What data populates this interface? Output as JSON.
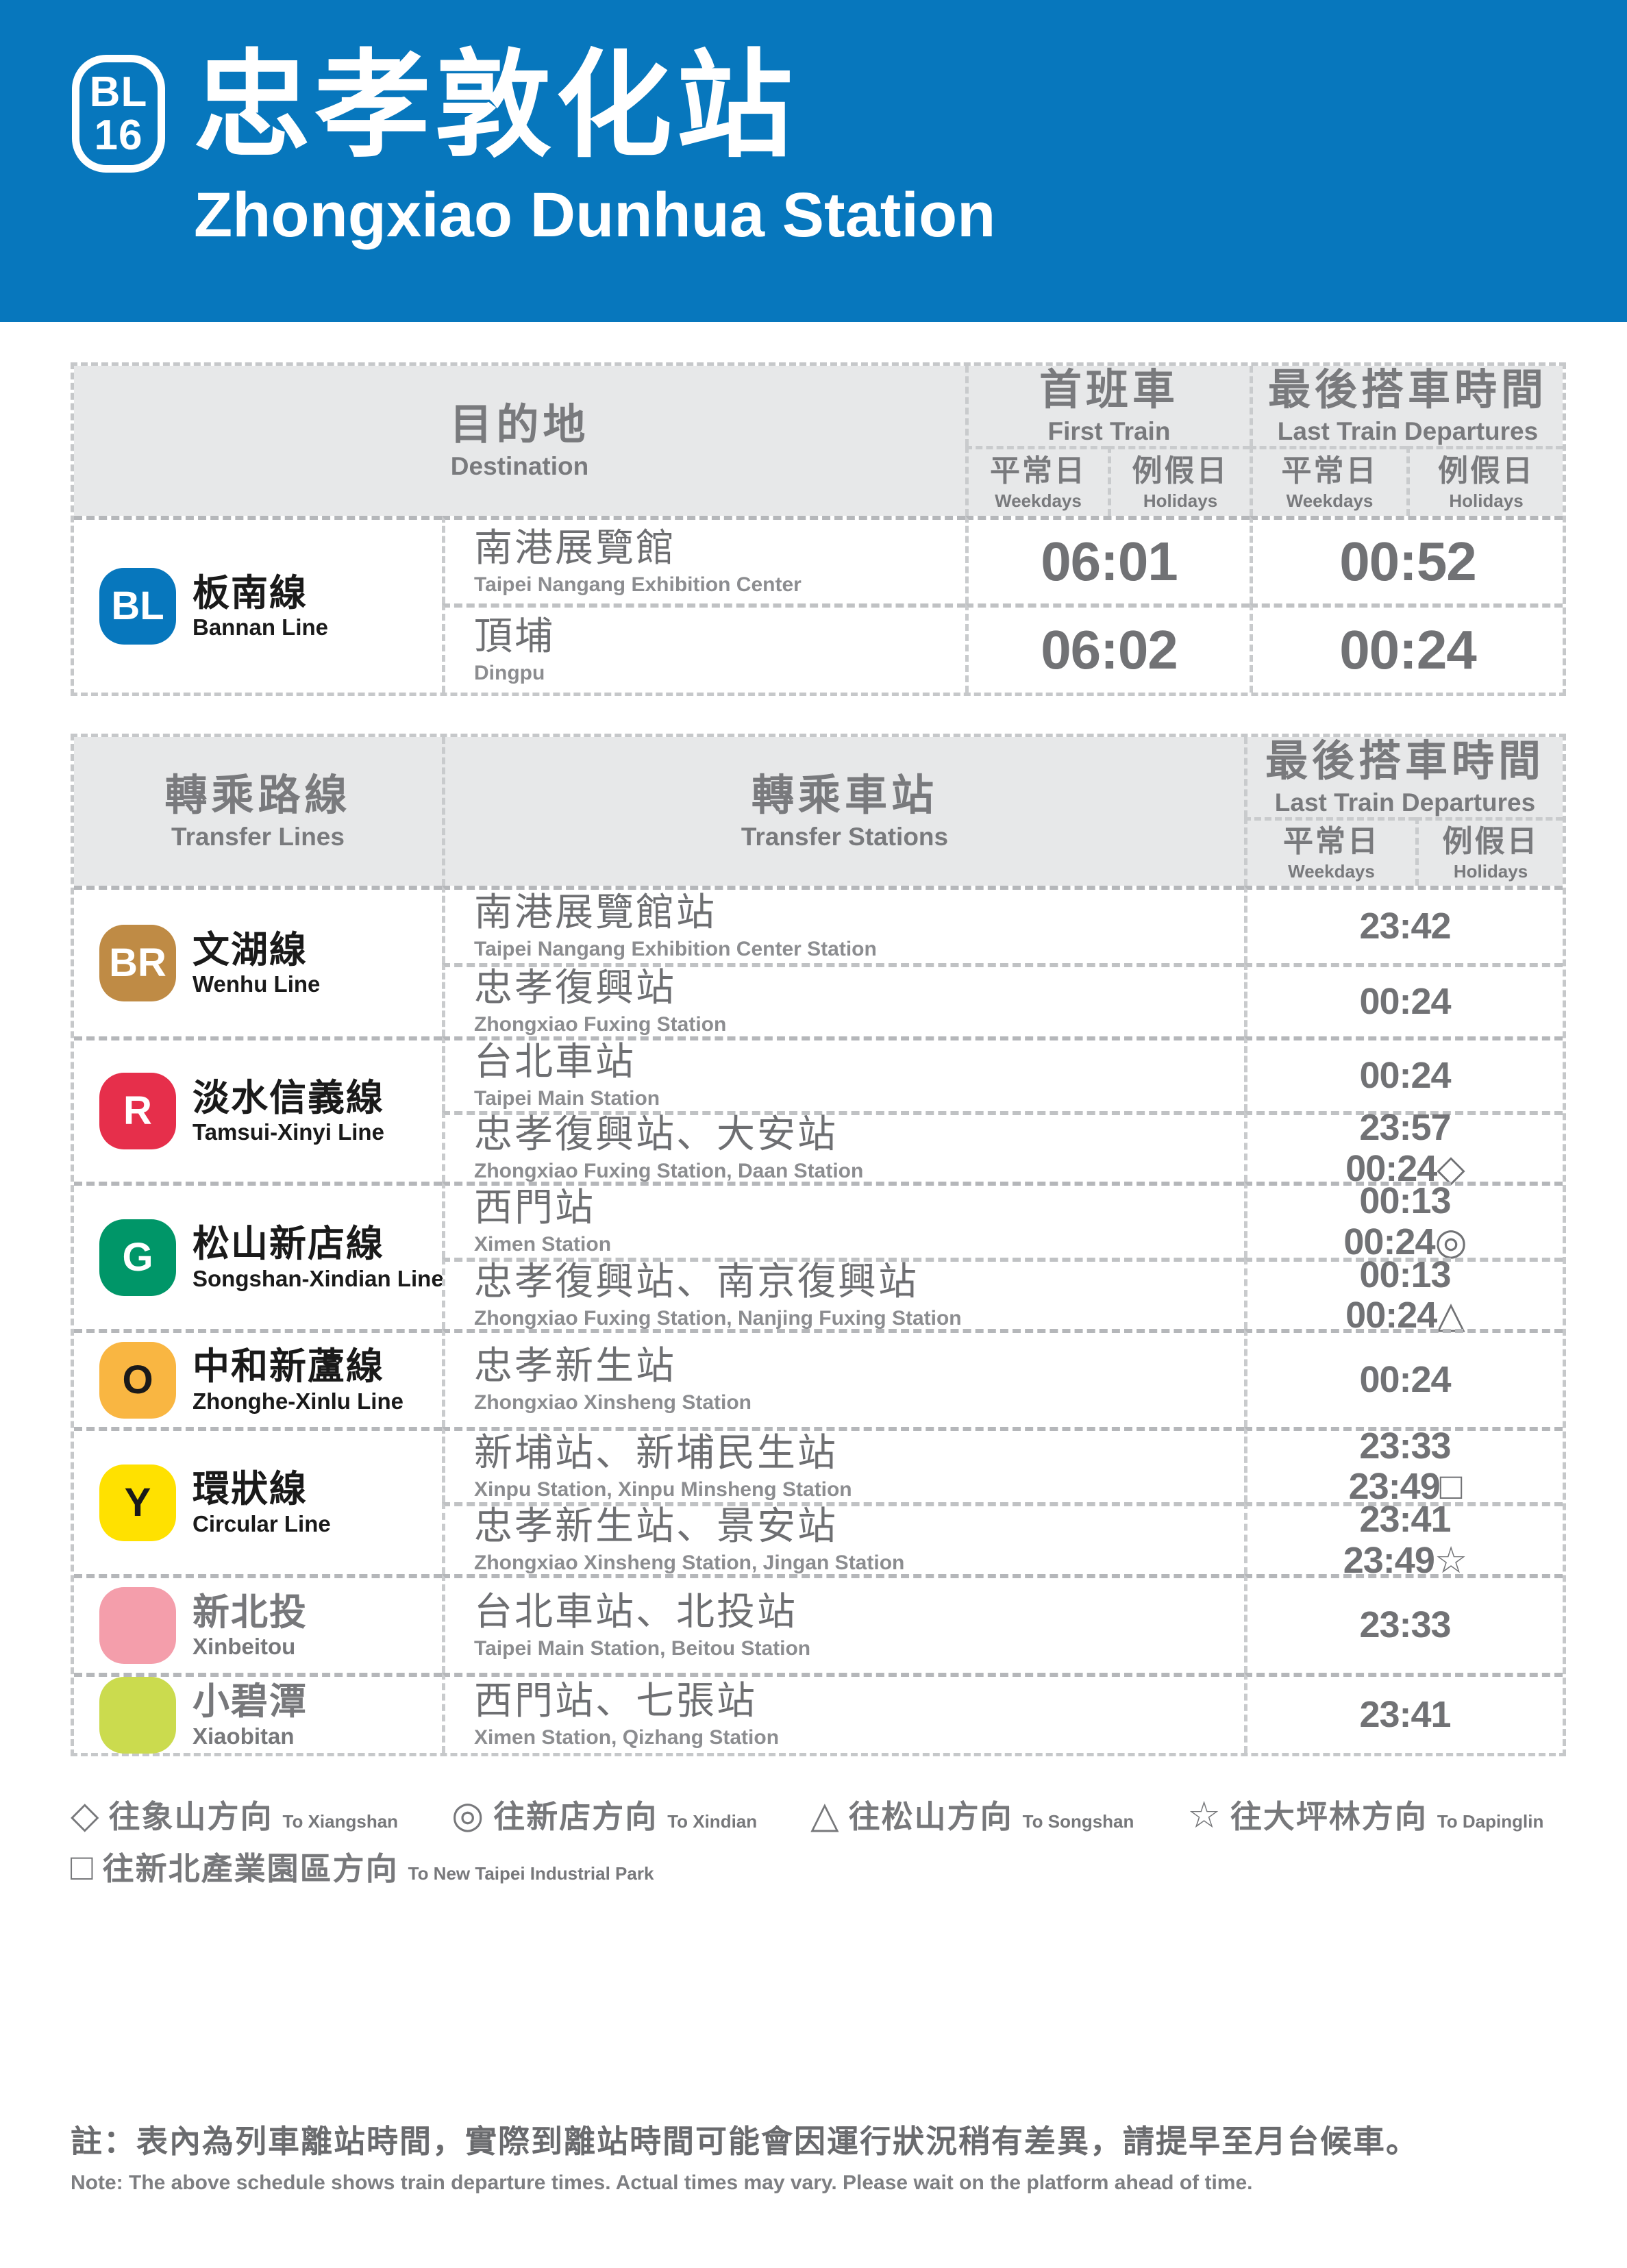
{
  "banner": {
    "line_code": "BL",
    "station_number": "16",
    "title_zh": "忠孝敦化站",
    "title_en": "Zhongxiao Dunhua Station",
    "bg_color": "#0777BD"
  },
  "first_train_table": {
    "header": {
      "destination_zh": "目的地",
      "destination_en": "Destination",
      "first_train_zh": "首班車",
      "first_train_en": "First Train",
      "last_train_zh": "最後搭車時間",
      "last_train_en": "Last Train Departures",
      "weekdays_zh": "平常日",
      "weekdays_en": "Weekdays",
      "holidays_zh": "例假日",
      "holidays_en": "Holidays"
    },
    "line": {
      "code": "BL",
      "name_zh": "板南線",
      "name_en": "Bannan Line",
      "badge_bg": "#0777BD",
      "badge_fg": "#FFFFFF",
      "name_color": "#1A1A1A"
    },
    "rows": [
      {
        "station_zh": "南港展覽館",
        "station_en": "Taipei Nangang Exhibition Center",
        "first_train": "06:01",
        "last_train": "00:52"
      },
      {
        "station_zh": "頂埔",
        "station_en": "Dingpu",
        "first_train": "06:02",
        "last_train": "00:24"
      }
    ]
  },
  "transfer_table": {
    "header": {
      "transfer_lines_zh": "轉乘路線",
      "transfer_lines_en": "Transfer Lines",
      "transfer_stations_zh": "轉乘車站",
      "transfer_stations_en": "Transfer Stations",
      "last_train_zh": "最後搭車時間",
      "last_train_en": "Last Train Departures",
      "weekdays_zh": "平常日",
      "weekdays_en": "Weekdays",
      "holidays_zh": "例假日",
      "holidays_en": "Holidays"
    },
    "sections": [
      {
        "code": "BR",
        "name_zh": "文湖線",
        "name_en": "Wenhu Line",
        "badge_bg": "#BF8B45",
        "badge_fg": "#FFFFFF",
        "name_color": "#1A1A1A",
        "rows": [
          {
            "station_zh": "南港展覽館站",
            "station_en": "Taipei Nangang Exhibition Center Station",
            "time1": "23:42",
            "time2": ""
          },
          {
            "station_zh": "忠孝復興站",
            "station_en": "Zhongxiao Fuxing Station",
            "time1": "00:24",
            "time2": ""
          }
        ]
      },
      {
        "code": "R",
        "name_zh": "淡水信義線",
        "name_en": "Tamsui-Xinyi Line",
        "badge_bg": "#E62F4B",
        "badge_fg": "#FFFFFF",
        "name_color": "#1A1A1A",
        "rows": [
          {
            "station_zh": "台北車站",
            "station_en": "Taipei Main Station",
            "time1": "00:24",
            "time2": ""
          },
          {
            "station_zh": "忠孝復興站、大安站",
            "station_en": "Zhongxiao Fuxing Station, Daan Station",
            "time1": "23:57",
            "time2": "00:24◇"
          }
        ]
      },
      {
        "code": "G",
        "name_zh": "松山新店線",
        "name_en": "Songshan-Xindian Line",
        "badge_bg": "#009668",
        "badge_fg": "#FFFFFF",
        "name_color": "#1A1A1A",
        "rows": [
          {
            "station_zh": "西門站",
            "station_en": "Ximen Station",
            "time1": "00:13",
            "time2": "00:24◎"
          },
          {
            "station_zh": "忠孝復興站、南京復興站",
            "station_en": "Zhongxiao Fuxing Station, Nanjing Fuxing Station",
            "time1": "00:13",
            "time2": "00:24△"
          }
        ]
      },
      {
        "code": "O",
        "name_zh": "中和新蘆線",
        "name_en": "Zhonghe-Xinlu Line",
        "badge_bg": "#F9B642",
        "badge_fg": "#1A1A1A",
        "name_color": "#1A1A1A",
        "rows": [
          {
            "station_zh": "忠孝新生站",
            "station_en": "Zhongxiao Xinsheng Station",
            "time1": "00:24",
            "time2": ""
          }
        ]
      },
      {
        "code": "Y",
        "name_zh": "環狀線",
        "name_en": "Circular Line",
        "badge_bg": "#FFE100",
        "badge_fg": "#1A1A1A",
        "name_color": "#1A1A1A",
        "rows": [
          {
            "station_zh": "新埔站、新埔民生站",
            "station_en": "Xinpu Station, Xinpu Minsheng Station",
            "time1": "23:33",
            "time2": "23:49□"
          },
          {
            "station_zh": "忠孝新生站、景安站",
            "station_en": "Zhongxiao Xinsheng Station, Jingan Station",
            "time1": "23:41",
            "time2": "23:49☆"
          }
        ]
      },
      {
        "code": "",
        "name_zh": "新北投",
        "name_en": "Xinbeitou",
        "badge_bg": "#F49EAB",
        "badge_fg": "#F49EAB",
        "name_color": "#77787B",
        "rows": [
          {
            "station_zh": "台北車站、北投站",
            "station_en": "Taipei Main Station, Beitou Station",
            "time1": "23:33",
            "time2": ""
          }
        ]
      },
      {
        "code": "",
        "name_zh": "小碧潭",
        "name_en": "Xiaobitan",
        "badge_bg": "#CBDB4E",
        "badge_fg": "#CBDB4E",
        "name_color": "#77787B",
        "rows": [
          {
            "station_zh": "西門站、七張站",
            "station_en": "Ximen Station, Qizhang Station",
            "time1": "23:41",
            "time2": ""
          }
        ]
      }
    ]
  },
  "legend": {
    "items": [
      {
        "symbol": "◇",
        "zh": "往象山方向",
        "en": "To Xiangshan"
      },
      {
        "symbol": "◎",
        "zh": "往新店方向",
        "en": "To Xindian"
      },
      {
        "symbol": "△",
        "zh": "往松山方向",
        "en": "To Songshan"
      },
      {
        "symbol": "☆",
        "zh": "往大坪林方向",
        "en": "To Dapinglin"
      },
      {
        "symbol": "□",
        "zh": "往新北產業園區方向",
        "en": "To New Taipei Industrial Park"
      }
    ]
  },
  "note": {
    "zh": "註：表內為列車離站時間，實際到離站時間可能會因運行狀況稍有差異，請提早至月台候車。",
    "en": "Note: The above schedule shows train departure times. Actual times may vary. Please wait on the platform ahead of time."
  }
}
